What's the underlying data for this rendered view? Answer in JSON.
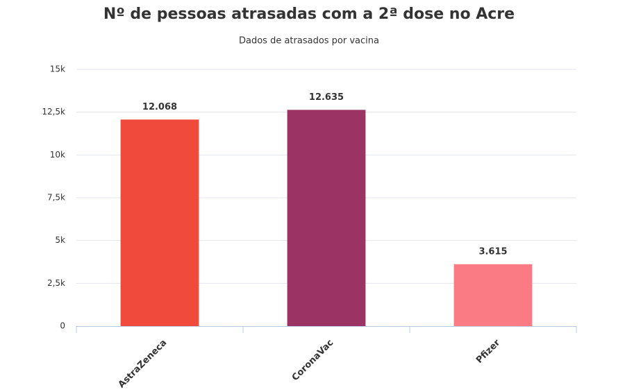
{
  "chart_data": {
    "type": "bar",
    "title": "Nº de pessoas atrasadas com a 2ª dose no Acre",
    "subtitle": "Dados de atrasados por vacina",
    "categories": [
      "AstraZeneca",
      "CoronaVac",
      "Pfizer"
    ],
    "values": [
      12068,
      12635,
      3615
    ],
    "value_labels": [
      "12.068",
      "12.635",
      "3.615"
    ],
    "colors": [
      "#ef4a3b",
      "#9b3465",
      "#fb7b84"
    ],
    "ylim": [
      0,
      15000
    ],
    "yticks": [
      0,
      {
        "value": 2500,
        "label": "2,5k"
      },
      {
        "value": 5000,
        "label": "5k"
      },
      {
        "value": 7500,
        "label": "7,5k"
      },
      {
        "value": 10000,
        "label": "10k"
      },
      {
        "value": 12500,
        "label": "12,5k"
      },
      {
        "value": 15000,
        "label": "15k"
      }
    ],
    "grid": true
  }
}
